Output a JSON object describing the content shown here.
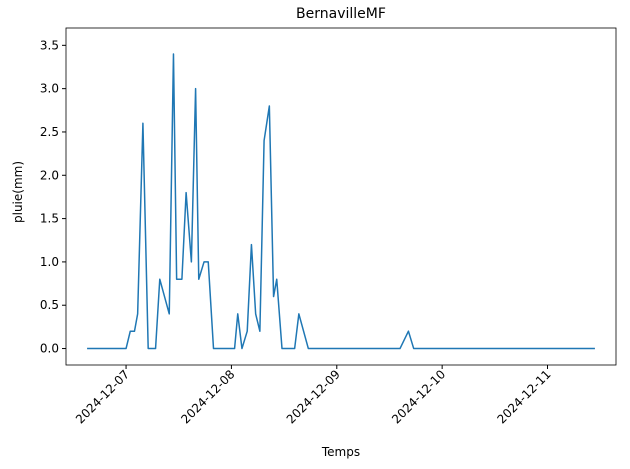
{
  "chart_data": {
    "type": "line",
    "title": "BernavilleMF",
    "x_label": "Temps",
    "y_label": "pluie(mm)",
    "x": [
      6.63,
      7.0,
      7.04,
      7.08,
      7.11,
      7.16,
      7.21,
      7.28,
      7.32,
      7.41,
      7.45,
      7.48,
      7.53,
      7.57,
      7.62,
      7.66,
      7.69,
      7.74,
      7.78,
      7.83,
      8.03,
      8.06,
      8.1,
      8.15,
      8.19,
      8.23,
      8.27,
      8.31,
      8.36,
      8.4,
      8.43,
      8.48,
      8.6,
      8.64,
      8.73,
      9.6,
      9.68,
      9.73,
      11.45
    ],
    "values": [
      0,
      0,
      0.2,
      0.2,
      0.4,
      2.6,
      0,
      0,
      0.8,
      0.4,
      3.4,
      0.8,
      0.8,
      1.8,
      1.0,
      3.0,
      0.8,
      1.0,
      1.0,
      0,
      0,
      0.4,
      0,
      0.2,
      1.2,
      0.4,
      0.2,
      2.4,
      2.8,
      0.6,
      0.8,
      0,
      0,
      0.4,
      0,
      0,
      0.2,
      0,
      0
    ],
    "color": "#1f77b4",
    "xlim": [
      6.43,
      11.65
    ],
    "xticks": [
      {
        "value": 7,
        "label": "2024-12-07"
      },
      {
        "value": 8,
        "label": "2024-12-08"
      },
      {
        "value": 9,
        "label": "2024-12-09"
      },
      {
        "value": 10,
        "label": "2024-12-10"
      },
      {
        "value": 11,
        "label": "2024-12-11"
      }
    ],
    "ylim": [
      -0.19,
      3.7
    ],
    "yticks": [
      {
        "value": 0,
        "label": "0.0"
      },
      0.5,
      {
        "value": 1,
        "label": "1.0"
      },
      1.5,
      {
        "value": 2,
        "label": "2.0"
      },
      2.5,
      {
        "value": 3,
        "label": "3.0"
      },
      3.5
    ],
    "grid": false
  }
}
